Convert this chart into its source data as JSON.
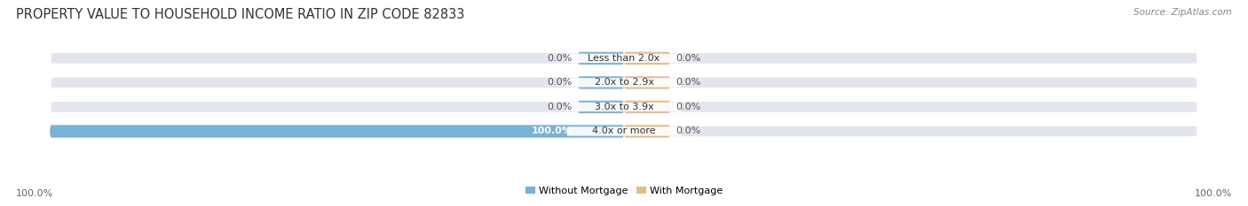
{
  "title": "PROPERTY VALUE TO HOUSEHOLD INCOME RATIO IN ZIP CODE 82833",
  "source": "Source: ZipAtlas.com",
  "categories": [
    "Less than 2.0x",
    "2.0x to 2.9x",
    "3.0x to 3.9x",
    "4.0x or more"
  ],
  "without_mortgage": [
    0.0,
    0.0,
    0.0,
    100.0
  ],
  "with_mortgage": [
    0.0,
    0.0,
    0.0,
    0.0
  ],
  "color_without": "#7ab3d9",
  "color_with": "#e8b98a",
  "bar_bg_color": "#e2e5ee",
  "label_left_pct": [
    "0.0%",
    "0.0%",
    "0.0%",
    "100.0%"
  ],
  "label_right_pct": [
    "0.0%",
    "0.0%",
    "0.0%",
    "0.0%"
  ],
  "legend_without": "Without Mortgage",
  "legend_with": "With Mortgage",
  "title_fontsize": 10.5,
  "source_fontsize": 7.5,
  "label_fontsize": 8,
  "category_fontsize": 8,
  "figure_bg": "#ffffff",
  "bottom_left_label": "100.0%",
  "bottom_right_label": "100.0%"
}
